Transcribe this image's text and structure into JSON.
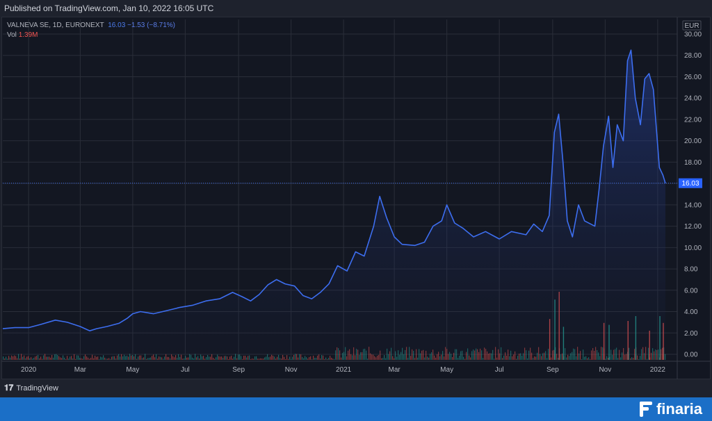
{
  "header": {
    "published": "Published on TradingView.com, Jan 10, 2022 16:05 UTC"
  },
  "legend": {
    "symbol": "VALNEVA SE, 1D, EURONEXT",
    "last": "16.03",
    "change": "−1.53 (−8.71%)",
    "vol_label": "Vol",
    "vol_value": "1.39M"
  },
  "axis": {
    "currency": "EUR",
    "last_price_tag": "16.03"
  },
  "footer": {
    "tv_logo": "TradingView",
    "brand": "finaria"
  },
  "colors": {
    "line": "#3d6ef0",
    "up": "#26a69a",
    "down": "#ef5350",
    "bg": "#131722",
    "grid": "#2a2e39",
    "brand": "#1b6fc7"
  },
  "chart_data": {
    "type": "area",
    "title": "",
    "ylabel": "EUR",
    "ylim": [
      0,
      30
    ],
    "yticks": [
      "0.00",
      "2.00",
      "4.00",
      "6.00",
      "8.00",
      "10.00",
      "12.00",
      "14.00",
      "16.00",
      "18.00",
      "20.00",
      "22.00",
      "24.00",
      "26.00",
      "28.00",
      "30.00"
    ],
    "x_tick_labels": [
      "2020",
      "Mar",
      "May",
      "Jul",
      "Sep",
      "Nov",
      "2021",
      "Mar",
      "May",
      "Jul",
      "Sep",
      "Nov",
      "2022"
    ],
    "x_tick_dates": [
      "2020-01",
      "2020-03",
      "2020-05",
      "2020-07",
      "2020-09",
      "2020-11",
      "2021-01",
      "2021-03",
      "2021-05",
      "2021-07",
      "2021-09",
      "2021-11",
      "2022-01"
    ],
    "x_range": [
      "2019-12-02",
      "2022-01-10"
    ],
    "series": [
      {
        "values_by_date": [
          [
            "2019-12-02",
            2.4
          ],
          [
            "2019-12-16",
            2.5
          ],
          [
            "2020-01-01",
            2.5
          ],
          [
            "2020-01-15",
            2.8
          ],
          [
            "2020-02-01",
            3.2
          ],
          [
            "2020-02-15",
            3.0
          ],
          [
            "2020-03-01",
            2.6
          ],
          [
            "2020-03-12",
            2.2
          ],
          [
            "2020-03-20",
            2.4
          ],
          [
            "2020-04-01",
            2.6
          ],
          [
            "2020-04-15",
            2.9
          ],
          [
            "2020-04-25",
            3.4
          ],
          [
            "2020-05-01",
            3.8
          ],
          [
            "2020-05-10",
            4.0
          ],
          [
            "2020-05-25",
            3.8
          ],
          [
            "2020-06-10",
            4.1
          ],
          [
            "2020-06-25",
            4.4
          ],
          [
            "2020-07-10",
            4.6
          ],
          [
            "2020-07-25",
            5.0
          ],
          [
            "2020-08-10",
            5.2
          ],
          [
            "2020-08-25",
            5.8
          ],
          [
            "2020-09-05",
            5.4
          ],
          [
            "2020-09-15",
            5.0
          ],
          [
            "2020-09-25",
            5.6
          ],
          [
            "2020-10-05",
            6.5
          ],
          [
            "2020-10-15",
            7.0
          ],
          [
            "2020-10-25",
            6.6
          ],
          [
            "2020-11-05",
            6.4
          ],
          [
            "2020-11-15",
            5.5
          ],
          [
            "2020-11-25",
            5.2
          ],
          [
            "2020-12-05",
            5.8
          ],
          [
            "2020-12-15",
            6.6
          ],
          [
            "2020-12-25",
            8.3
          ],
          [
            "2021-01-05",
            7.8
          ],
          [
            "2021-01-15",
            9.6
          ],
          [
            "2021-01-25",
            9.2
          ],
          [
            "2021-02-05",
            12.0
          ],
          [
            "2021-02-12",
            14.8
          ],
          [
            "2021-02-20",
            12.8
          ],
          [
            "2021-03-01",
            11.0
          ],
          [
            "2021-03-10",
            10.3
          ],
          [
            "2021-03-25",
            10.2
          ],
          [
            "2021-04-05",
            10.5
          ],
          [
            "2021-04-15",
            12.0
          ],
          [
            "2021-04-25",
            12.5
          ],
          [
            "2021-05-01",
            14.0
          ],
          [
            "2021-05-10",
            12.3
          ],
          [
            "2021-05-20",
            11.8
          ],
          [
            "2021-06-01",
            11.0
          ],
          [
            "2021-06-15",
            11.5
          ],
          [
            "2021-07-01",
            10.8
          ],
          [
            "2021-07-15",
            11.5
          ],
          [
            "2021-08-01",
            11.2
          ],
          [
            "2021-08-10",
            12.2
          ],
          [
            "2021-08-20",
            11.5
          ],
          [
            "2021-08-28",
            13.0
          ],
          [
            "2021-09-03",
            20.8
          ],
          [
            "2021-09-08",
            22.5
          ],
          [
            "2021-09-13",
            18.0
          ],
          [
            "2021-09-18",
            12.5
          ],
          [
            "2021-09-24",
            11.0
          ],
          [
            "2021-10-01",
            14.0
          ],
          [
            "2021-10-08",
            12.5
          ],
          [
            "2021-10-20",
            12.0
          ],
          [
            "2021-10-25",
            15.5
          ],
          [
            "2021-10-30",
            19.5
          ],
          [
            "2021-11-05",
            22.3
          ],
          [
            "2021-11-10",
            17.5
          ],
          [
            "2021-11-15",
            21.5
          ],
          [
            "2021-11-22",
            20.0
          ],
          [
            "2021-11-27",
            27.5
          ],
          [
            "2021-12-01",
            28.5
          ],
          [
            "2021-12-06",
            24.0
          ],
          [
            "2021-12-12",
            21.5
          ],
          [
            "2021-12-17",
            25.8
          ],
          [
            "2021-12-22",
            26.3
          ],
          [
            "2021-12-27",
            24.8
          ],
          [
            "2022-01-03",
            17.5
          ],
          [
            "2022-01-07",
            16.8
          ],
          [
            "2022-01-10",
            16.03
          ]
        ]
      }
    ],
    "volume_series_label": "Vol",
    "volume_millions_by_date": [
      [
        "2021-08-28",
        4.2
      ],
      [
        "2021-09-03",
        6.2
      ],
      [
        "2021-09-08",
        7.0
      ],
      [
        "2021-09-13",
        3.4
      ],
      [
        "2021-10-30",
        3.8
      ],
      [
        "2021-11-05",
        3.6
      ],
      [
        "2021-11-27",
        4.0
      ],
      [
        "2021-12-06",
        4.5
      ],
      [
        "2021-12-22",
        3.0
      ],
      [
        "2022-01-03",
        4.5
      ],
      [
        "2022-01-07",
        3.8
      ]
    ]
  }
}
